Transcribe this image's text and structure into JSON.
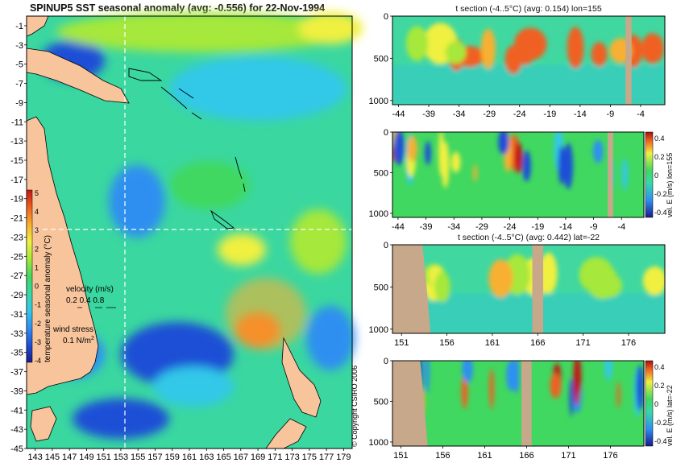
{
  "colors": {
    "land": "#f8c49c",
    "mask": "#c8a88a",
    "ocean_base": "#3ad7a0",
    "colormap": [
      "#1a1a8c",
      "#1f4fd6",
      "#2f8ff0",
      "#33c8e8",
      "#35d9a6",
      "#40d860",
      "#a6e83a",
      "#f0f040",
      "#f8b030",
      "#f06020",
      "#c01818"
    ]
  },
  "map": {
    "title": "SPINUP5 SST seasonal anomaly (avg: -0.556) for 22-Nov-1994",
    "colorbar_label": "temperature seasonal anomaly (°C)",
    "colorbar_ticks": [
      "5",
      "4",
      "3",
      "2",
      "1",
      "0",
      "-1",
      "-2",
      "-3",
      "-4"
    ],
    "velocity_label": "velocity (m/s)",
    "velocity_scale": "0.2 0.4 0.8",
    "wind_label": "wind stress",
    "wind_scale": "0.1 N/m",
    "wind_scale_exp": "2",
    "copyright": "© Copyright CSIRO 2006"
  },
  "panels": [
    {
      "title": "t section (-4..5°C) (avg: 0.154) lon=155",
      "cbar_label": ""
    },
    {
      "title": "",
      "cbar_label": "vel. E (m/s) lon=155"
    },
    {
      "title": "t section (-4..5°C) (avg: 0.442) lat=-22",
      "cbar_label": ""
    },
    {
      "title": "",
      "cbar_label": "vel. E (m/s) lat=-22"
    }
  ],
  "chart_data": [
    {
      "type": "heatmap",
      "title": "SPINUP5 SST seasonal anomaly (avg: -0.556) for 22-Nov-1994",
      "x_tick_labels": [
        "143",
        "145",
        "147",
        "149",
        "151",
        "153",
        "155",
        "157",
        "159",
        "161",
        "163",
        "165",
        "167",
        "169",
        "171",
        "173",
        "175",
        "177",
        "179"
      ],
      "y_tick_labels": [
        "-1",
        "-3",
        "-5",
        "-7",
        "-9",
        "-11",
        "-13",
        "-15",
        "-17",
        "-19",
        "-21",
        "-23",
        "-25",
        "-27",
        "-29",
        "-31",
        "-33",
        "-35",
        "-37",
        "-39",
        "-41",
        "-43",
        "-45"
      ],
      "xlim": [
        142,
        180
      ],
      "ylim": [
        -45,
        0
      ],
      "crosshair": {
        "lon": 155,
        "lat": -22
      },
      "colorbar": {
        "label": "temperature seasonal anomaly (°C)",
        "min": -4,
        "max": 5
      }
    },
    {
      "type": "heatmap",
      "title": "t section (-4..5°C) (avg: 0.154) lon=155",
      "x_tick_labels": [
        "-44",
        "-39",
        "-34",
        "-29",
        "-24",
        "-19",
        "-14",
        "-9",
        "-4"
      ],
      "y_tick_labels": [
        "0",
        "500",
        "1000"
      ],
      "xlim": [
        -45,
        0
      ],
      "ylim": [
        1050,
        0
      ]
    },
    {
      "type": "heatmap",
      "title": "",
      "x_tick_labels": [
        "-44",
        "-39",
        "-34",
        "-29",
        "-24",
        "-19",
        "-14",
        "-9",
        "-4"
      ],
      "y_tick_labels": [
        "0",
        "500",
        "1000"
      ],
      "xlim": [
        -45,
        0
      ],
      "ylim": [
        1050,
        0
      ],
      "colorbar": {
        "label": "vel. E (m/s) lon=155",
        "ticks": [
          "0.4",
          "0.2",
          "0",
          "-0.2",
          "-0.4"
        ],
        "min": -0.4,
        "max": 0.4
      }
    },
    {
      "type": "heatmap",
      "title": "t section (-4..5°C) (avg: 0.442) lat=-22",
      "x_tick_labels": [
        "151",
        "156",
        "161",
        "166",
        "171",
        "176"
      ],
      "y_tick_labels": [
        "0",
        "500",
        "1000"
      ],
      "xlim": [
        150,
        180
      ],
      "ylim": [
        1050,
        0
      ]
    },
    {
      "type": "heatmap",
      "title": "",
      "x_tick_labels": [
        "151",
        "156",
        "161",
        "166",
        "171",
        "176"
      ],
      "y_tick_labels": [
        "0",
        "500",
        "1000"
      ],
      "xlim": [
        150,
        180
      ],
      "ylim": [
        1050,
        0
      ],
      "colorbar": {
        "label": "vel. E (m/s) lat=-22",
        "ticks": [
          "0.4",
          "0.2",
          "0",
          "-0.2",
          "-0.4"
        ],
        "min": -0.4,
        "max": 0.4
      }
    }
  ]
}
